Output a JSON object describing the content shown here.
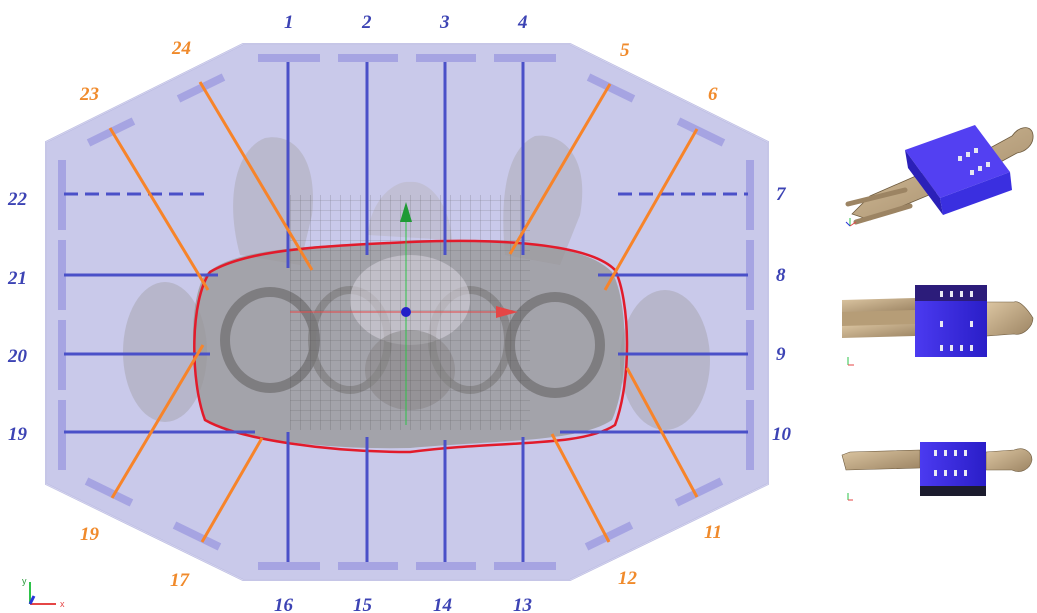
{
  "blue_labels": [
    "1",
    "2",
    "3",
    "4",
    "7",
    "8",
    "9",
    "10",
    "13",
    "14",
    "15",
    "16",
    "19",
    "20",
    "21",
    "22"
  ],
  "orange_labels": [
    "24",
    "5",
    "23",
    "6",
    "11",
    "12",
    "17",
    "19"
  ],
  "colors": {
    "frame": "#c8c8ea",
    "pad": "#a8a6e3",
    "blue_beam": "#4a50c8",
    "orange_beam": "#f7842a",
    "contour": "#e21b2b",
    "label_blue": "#3c43b4",
    "label_orange": "#f08a2b",
    "box": "#3a2fe0"
  },
  "axes": {
    "main": {
      "x": "x",
      "y": "y"
    }
  },
  "icons": [
    "human-phantom",
    "beam-box",
    "axes-triad"
  ]
}
